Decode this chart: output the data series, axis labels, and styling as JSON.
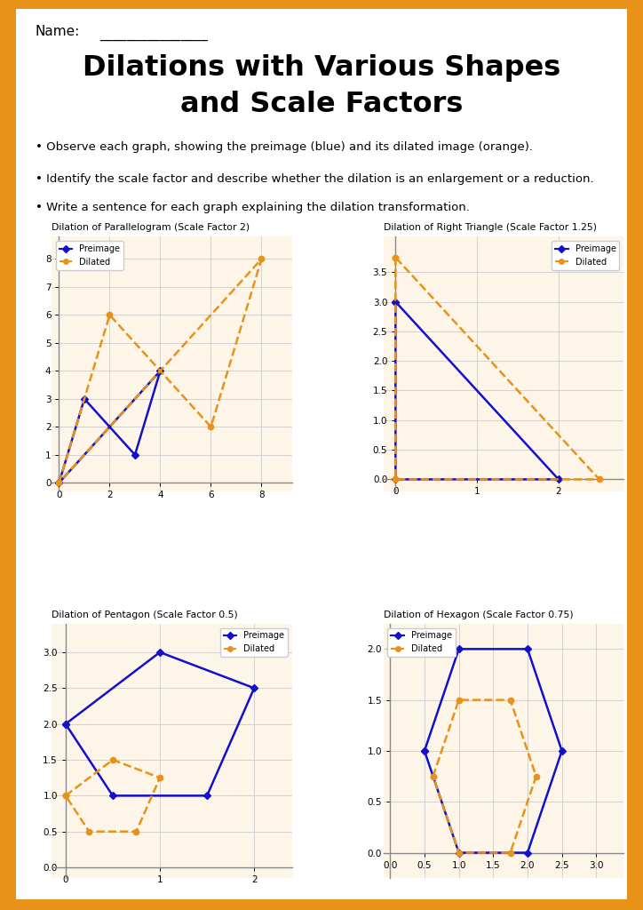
{
  "page_bg": "#ffffff",
  "border_color": "#E8921A",
  "title_line1": "Dilations with Various Shapes",
  "title_line2": "and Scale Factors",
  "name_label": "Name:",
  "name_line": "________________",
  "bullets": [
    "Observe each graph, showing the preimage (blue) and its dilated image (orange).",
    "Identify the scale factor and describe whether the dilation is an enlargement or a reduction.",
    "Write a sentence for each graph explaining the dilation transformation."
  ],
  "preimage_color": "#1111cc",
  "dilated_color": "#E8921A",
  "graphs": [
    {
      "title": "Dilation of Parallelogram (Scale Factor 2)",
      "preimage": [
        [
          0,
          0
        ],
        [
          1,
          3
        ],
        [
          3,
          1
        ],
        [
          4,
          4
        ],
        [
          0,
          0
        ]
      ],
      "dilated": [
        [
          0,
          0
        ],
        [
          2,
          6
        ],
        [
          6,
          2
        ],
        [
          8,
          8
        ],
        [
          0,
          0
        ]
      ],
      "xlim": [
        -0.3,
        9.2
      ],
      "ylim": [
        -0.3,
        8.8
      ],
      "xticks": [
        0,
        2,
        4,
        6,
        8
      ],
      "yticks": [
        0,
        1,
        2,
        3,
        4,
        5,
        6,
        7,
        8
      ],
      "legend_loc": "upper left"
    },
    {
      "title": "Dilation of Right Triangle (Scale Factor 1.25)",
      "preimage": [
        [
          0,
          3
        ],
        [
          0,
          0
        ],
        [
          2,
          0
        ],
        [
          0,
          3
        ]
      ],
      "dilated": [
        [
          0,
          3.75
        ],
        [
          0,
          0
        ],
        [
          2.5,
          0
        ],
        [
          0,
          3.75
        ]
      ],
      "xlim": [
        -0.15,
        2.8
      ],
      "ylim": [
        -0.2,
        4.1
      ],
      "xticks": [
        0,
        1,
        2
      ],
      "yticks": [
        0.0,
        0.5,
        1.0,
        1.5,
        2.0,
        2.5,
        3.0,
        3.5
      ],
      "legend_loc": "upper right"
    },
    {
      "title": "Dilation of Pentagon (Scale Factor 0.5)",
      "preimage": [
        [
          0,
          2
        ],
        [
          1,
          3
        ],
        [
          2,
          2.5
        ],
        [
          1.5,
          1
        ],
        [
          0.5,
          1
        ],
        [
          0,
          2
        ]
      ],
      "dilated": [
        [
          0,
          1
        ],
        [
          0.5,
          1.5
        ],
        [
          1,
          1.25
        ],
        [
          0.75,
          0.5
        ],
        [
          0.25,
          0.5
        ],
        [
          0,
          1
        ]
      ],
      "xlim": [
        -0.15,
        2.4
      ],
      "ylim": [
        -0.15,
        3.4
      ],
      "xticks": [
        0,
        1,
        2
      ],
      "yticks": [
        0.0,
        0.5,
        1.0,
        1.5,
        2.0,
        2.5,
        3.0
      ],
      "legend_loc": "upper right"
    },
    {
      "title": "Dilation of Hexagon (Scale Factor 0.75)",
      "preimage": [
        [
          0.5,
          1
        ],
        [
          1,
          2
        ],
        [
          2,
          2
        ],
        [
          2.5,
          1
        ],
        [
          2,
          0
        ],
        [
          1,
          0
        ],
        [
          0.5,
          1
        ]
      ],
      "dilated": [
        [
          0.625,
          0.75
        ],
        [
          1.0,
          1.5
        ],
        [
          1.75,
          1.5
        ],
        [
          2.125,
          0.75
        ],
        [
          1.75,
          0.0
        ],
        [
          1.0,
          0.0
        ],
        [
          0.625,
          0.75
        ]
      ],
      "xlim": [
        -0.1,
        3.4
      ],
      "ylim": [
        -0.25,
        2.25
      ],
      "xticks": [
        0.0,
        0.5,
        1.0,
        1.5,
        2.0,
        2.5,
        3.0
      ],
      "yticks": [
        0.0,
        0.5,
        1.0,
        1.5,
        2.0
      ],
      "legend_loc": "upper left"
    }
  ]
}
